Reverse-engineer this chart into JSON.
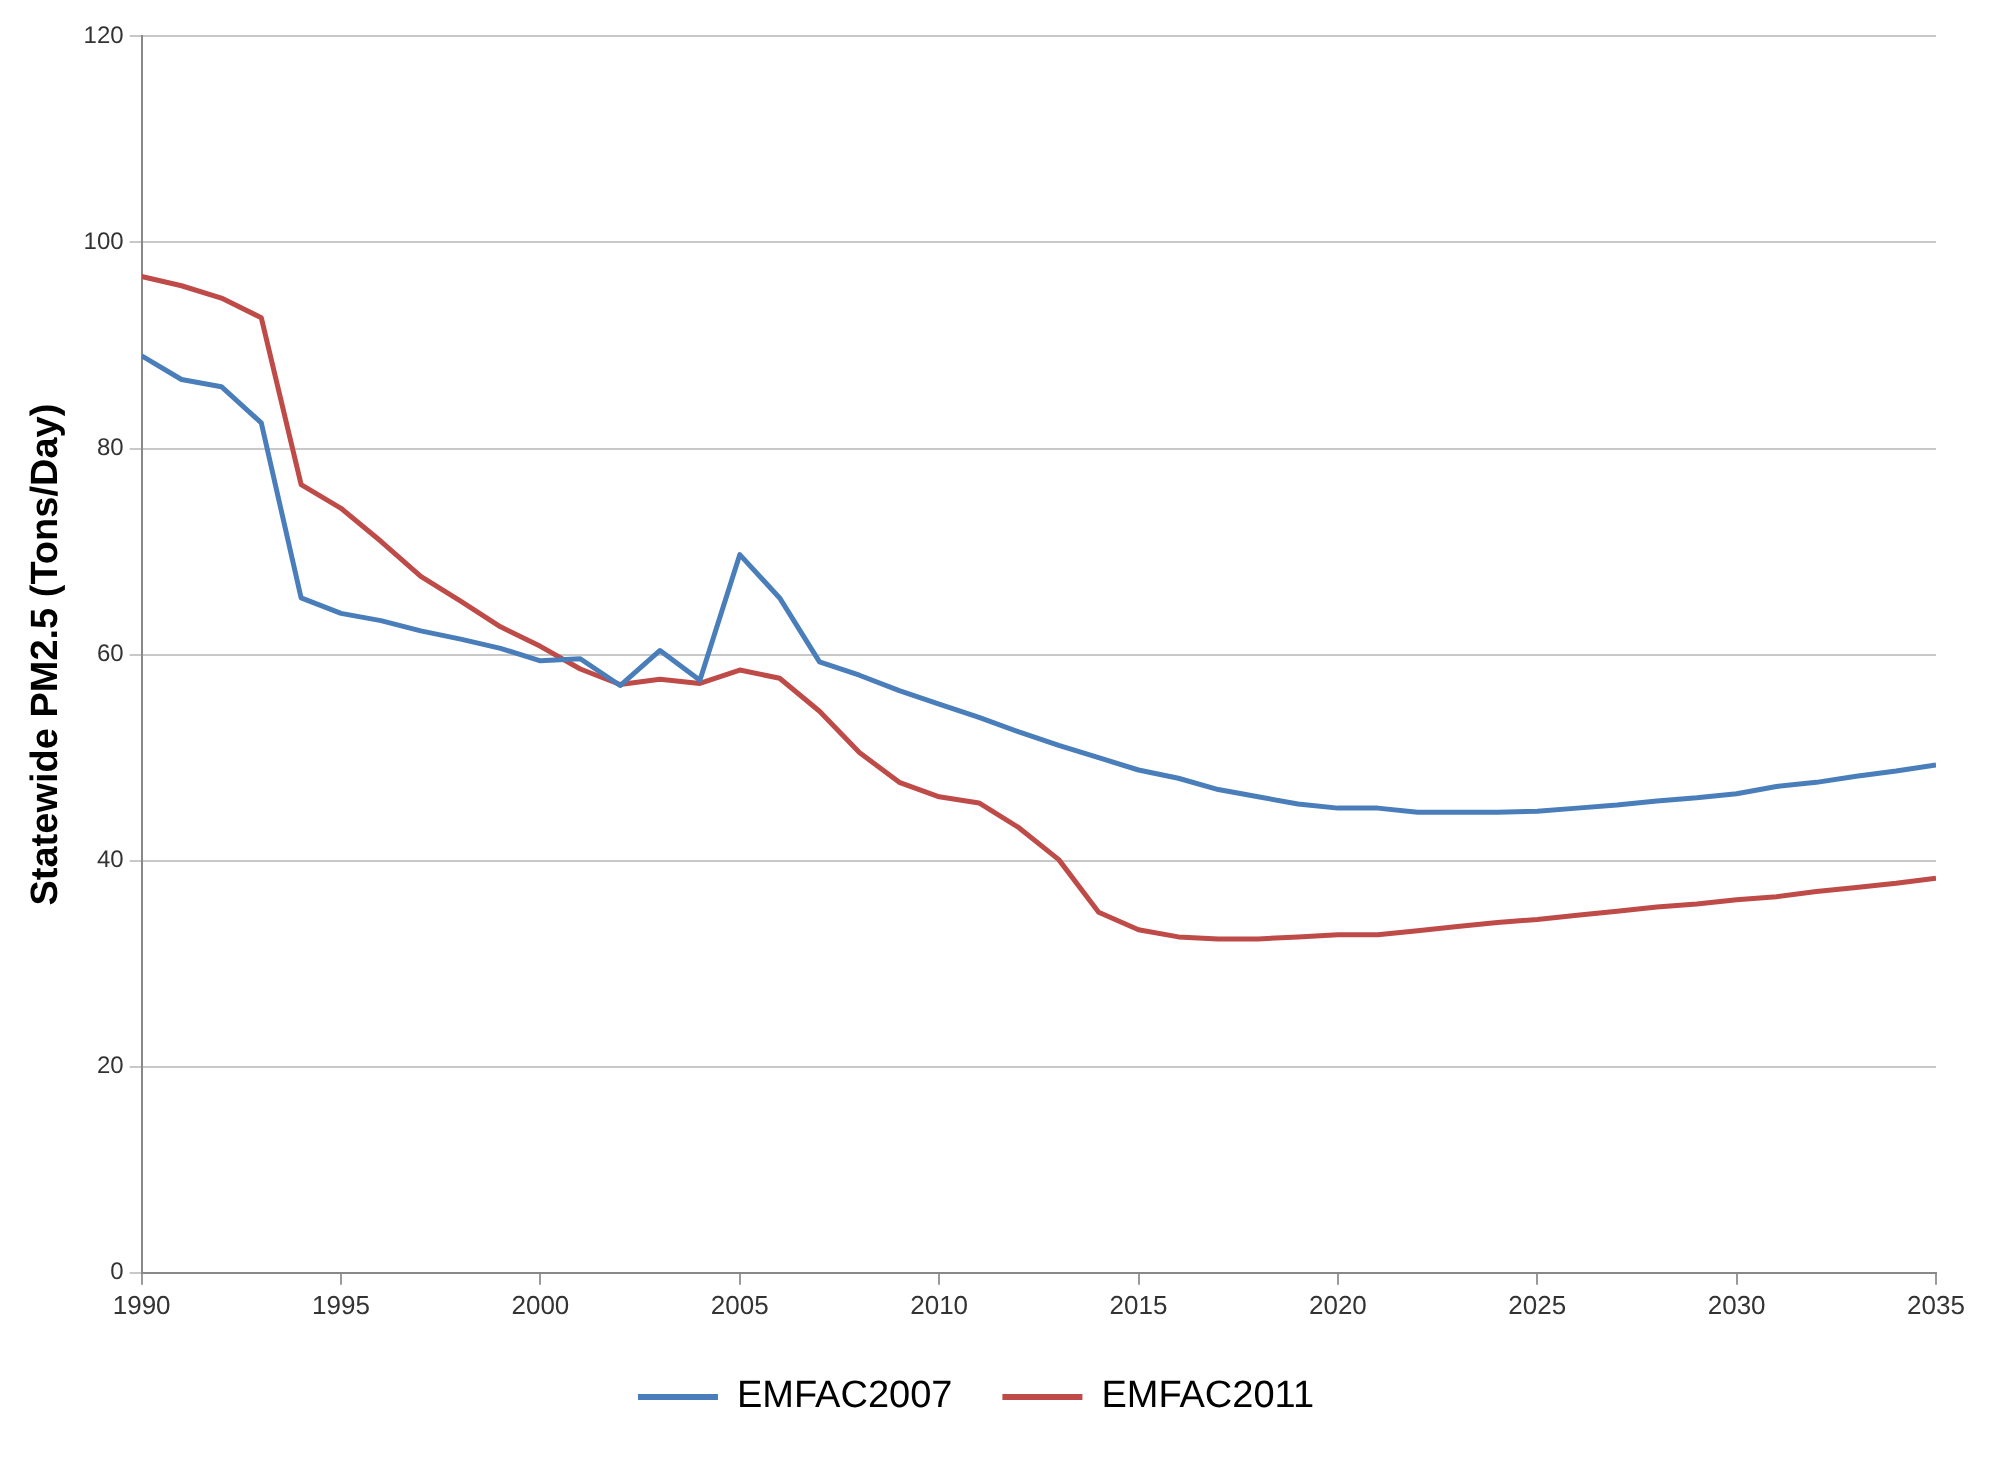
{
  "chart_data": {
    "type": "line",
    "ylabel": "Statewide PM2.5 (Tons/Day)",
    "x": [
      1990,
      1991,
      1992,
      1993,
      1994,
      1995,
      1996,
      1997,
      1998,
      1999,
      2000,
      2001,
      2002,
      2003,
      2004,
      2005,
      2006,
      2007,
      2008,
      2009,
      2010,
      2011,
      2012,
      2013,
      2014,
      2015,
      2016,
      2017,
      2018,
      2019,
      2020,
      2021,
      2022,
      2023,
      2024,
      2025,
      2026,
      2027,
      2028,
      2029,
      2030,
      2031,
      2032,
      2033,
      2034,
      2035
    ],
    "series": [
      {
        "name": "EMFAC2007",
        "color": "#4a7ebb",
        "values": [
          89,
          86.7,
          86,
          82.5,
          65.5,
          64,
          63.3,
          62.3,
          61.5,
          60.6,
          59.4,
          59.6,
          57,
          60.4,
          57.5,
          69.7,
          65.5,
          59.3,
          58,
          56.5,
          55.2,
          53.9,
          52.5,
          51.2,
          50,
          48.8,
          48,
          46.9,
          46.2,
          45.5,
          45.1,
          45.1,
          44.7,
          44.7,
          44.7,
          44.8,
          45.1,
          45.4,
          45.8,
          46.1,
          46.5,
          47.2,
          47.6,
          48.2,
          48.7,
          49.3
        ]
      },
      {
        "name": "EMFAC2011",
        "color": "#be4b48",
        "values": [
          96.7,
          95.8,
          94.6,
          92.7,
          76.5,
          74.2,
          71,
          67.6,
          65.2,
          62.7,
          60.8,
          58.6,
          57.1,
          57.6,
          57.2,
          58.5,
          57.7,
          54.5,
          50.5,
          47.6,
          46.2,
          45.6,
          43.2,
          40.1,
          35,
          33.3,
          32.6,
          32.4,
          32.4,
          32.6,
          32.8,
          32.8,
          33.2,
          33.6,
          34,
          34.3,
          34.7,
          35.1,
          35.5,
          35.8,
          36.2,
          36.5,
          37,
          37.4,
          37.8,
          38.3
        ]
      }
    ],
    "xlim": [
      1990,
      2035
    ],
    "xticks": [
      1990,
      1995,
      2000,
      2005,
      2010,
      2015,
      2020,
      2025,
      2030,
      2035
    ],
    "ylim": [
      0,
      120
    ],
    "yticks": [
      0,
      20,
      40,
      60,
      80,
      100,
      120
    ],
    "grid": "y",
    "legend": "bottom",
    "marker": "none",
    "line_style": "solid"
  }
}
